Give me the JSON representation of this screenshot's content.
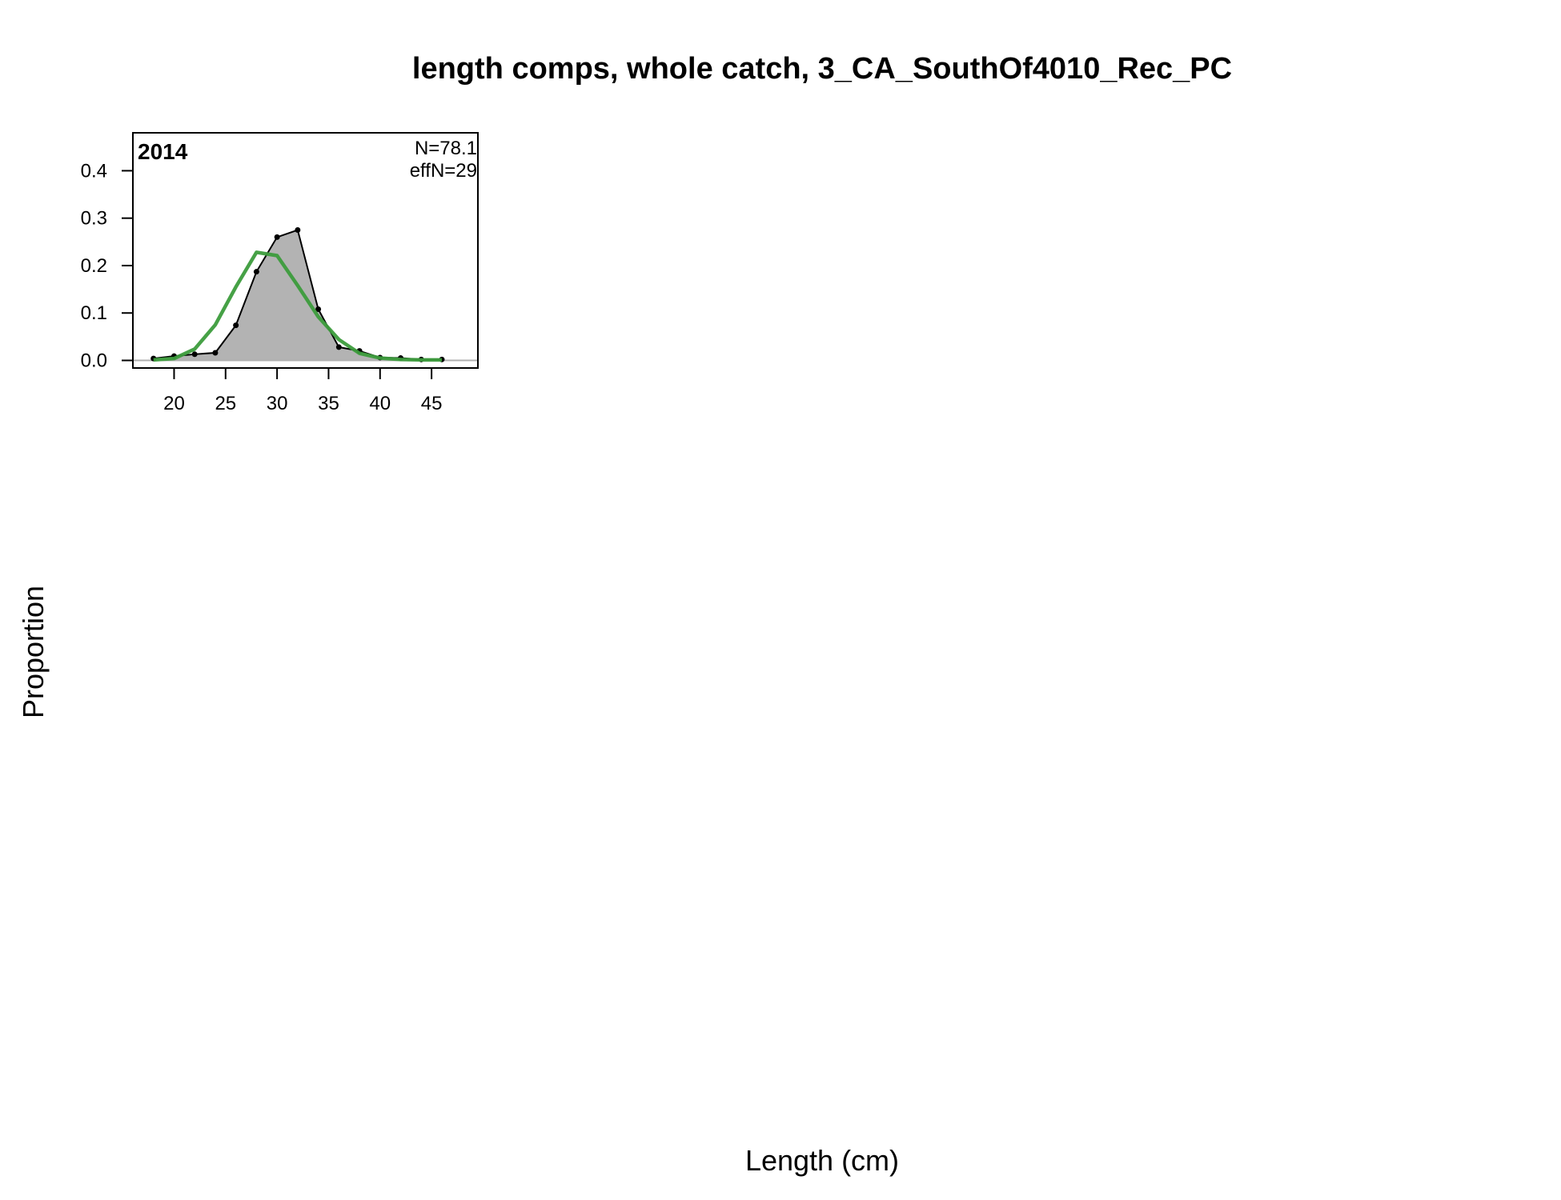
{
  "chart_data": {
    "type": "area",
    "title": "length comps, whole catch, 3_CA_SouthOf4010_Rec_PC",
    "xlabel": "Length (cm)",
    "ylabel": "Proportion",
    "panel_label": "2014",
    "annotations": [
      "N=78.1",
      "effN=29"
    ],
    "xlim": [
      16,
      49.5
    ],
    "ylim": [
      -0.016,
      0.48
    ],
    "x_ticks": [
      20,
      25,
      30,
      35,
      40,
      45
    ],
    "y_ticks": [
      0.0,
      0.1,
      0.2,
      0.3,
      0.4
    ],
    "x_tick_labels": [
      "20",
      "25",
      "30",
      "35",
      "40",
      "45"
    ],
    "y_tick_labels": [
      "0.0",
      "0.1",
      "0.2",
      "0.3",
      "0.4"
    ],
    "grid": false,
    "series": [
      {
        "kind": "observed",
        "color": "#000000",
        "fill": "#b3b3b3",
        "x": [
          18,
          20,
          22,
          24,
          26,
          28,
          30,
          32,
          34,
          36,
          38,
          40,
          42,
          44,
          46
        ],
        "y": [
          0.004,
          0.009,
          0.013,
          0.016,
          0.074,
          0.187,
          0.26,
          0.275,
          0.108,
          0.028,
          0.02,
          0.006,
          0.005,
          0.002,
          0.002
        ]
      },
      {
        "kind": "expected",
        "color": "#3c9c3c",
        "x": [
          18,
          20,
          22,
          24,
          26,
          28,
          30,
          32,
          34,
          36,
          38,
          40,
          42,
          44,
          46
        ],
        "y": [
          0.001,
          0.004,
          0.024,
          0.075,
          0.155,
          0.228,
          0.221,
          0.158,
          0.092,
          0.044,
          0.015,
          0.005,
          0.002,
          0.001,
          0.001
        ]
      }
    ]
  }
}
